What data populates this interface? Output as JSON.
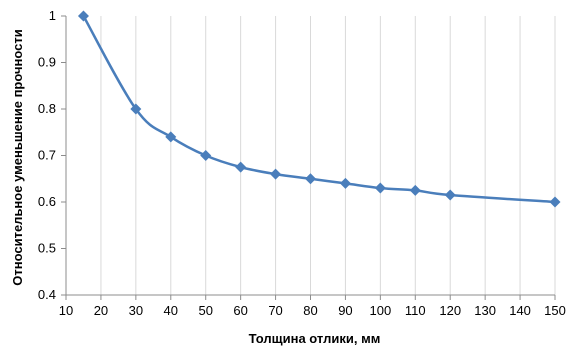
{
  "chart_data": {
    "type": "line",
    "title": "",
    "xlabel": "Толщина отлики, мм",
    "ylabel": "Относительное уменьшение прочности",
    "xlim": [
      10,
      150
    ],
    "ylim": [
      0.4,
      1
    ],
    "x_ticks": [
      "10",
      "20",
      "30",
      "40",
      "50",
      "60",
      "70",
      "80",
      "90",
      "100",
      "110",
      "120",
      "130",
      "140",
      "150"
    ],
    "y_ticks": [
      "0.4",
      "0.5",
      "0.6",
      "0.7",
      "0.8",
      "0.9",
      "1"
    ],
    "grid": "vertical",
    "legend": "none",
    "series": [
      {
        "x": [
          15,
          30,
          40,
          50,
          60,
          70,
          80,
          90,
          100,
          110,
          120,
          150
        ],
        "y": [
          1.0,
          0.8,
          0.74,
          0.7,
          0.675,
          0.66,
          0.65,
          0.64,
          0.63,
          0.625,
          0.615,
          0.6
        ],
        "color": "#4a7ebb",
        "marker": "diamond"
      }
    ]
  }
}
